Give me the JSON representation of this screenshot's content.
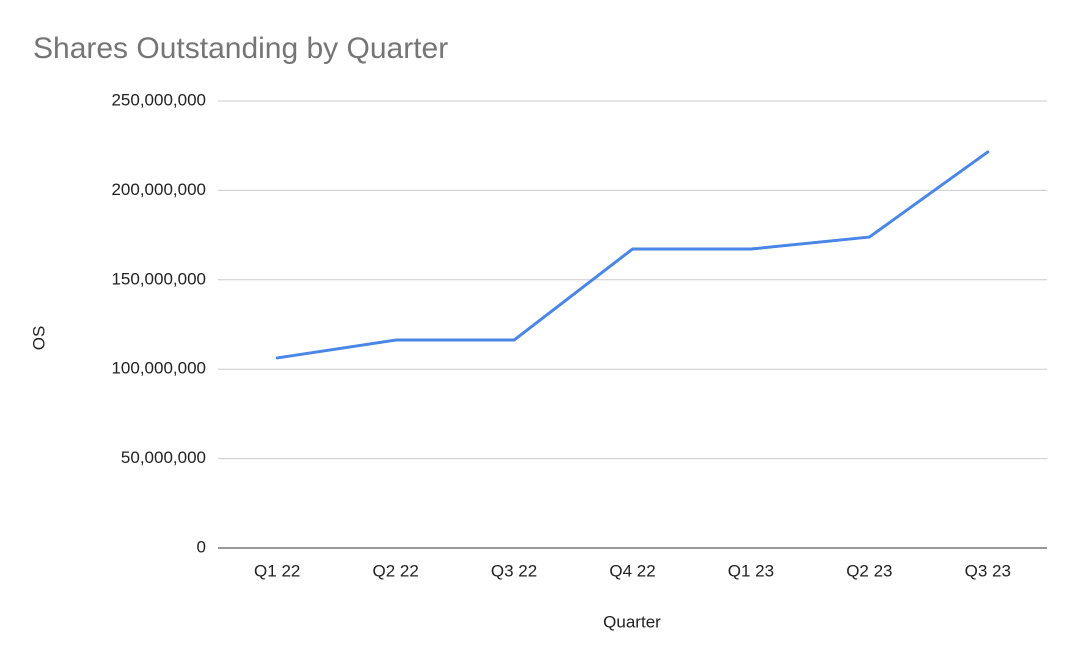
{
  "chart_data": {
    "type": "line",
    "title": "Shares Outstanding by Quarter",
    "x_label": "Quarter",
    "y_label": "OS",
    "categories": [
      "Q1 22",
      "Q2 22",
      "Q3 22",
      "Q4 22",
      "Q1 23",
      "Q2 23",
      "Q3 23"
    ],
    "series": [
      {
        "name": "OS",
        "color": "#4a86e8",
        "values": [
          106300000,
          116300000,
          116300000,
          167200000,
          167200000,
          173900000,
          221500000
        ]
      }
    ],
    "ylim": [
      0,
      250000000
    ],
    "yticks": [
      0,
      {
        "value": 50000000,
        "label": "50,000,000"
      },
      {
        "value": 100000000,
        "label": "100,000,000"
      },
      {
        "value": 150000000,
        "label": "150,000,000"
      },
      {
        "value": 200000000,
        "label": "200,000,000"
      },
      {
        "value": 250000000,
        "label": "250,000,000"
      }
    ],
    "grid": true
  }
}
